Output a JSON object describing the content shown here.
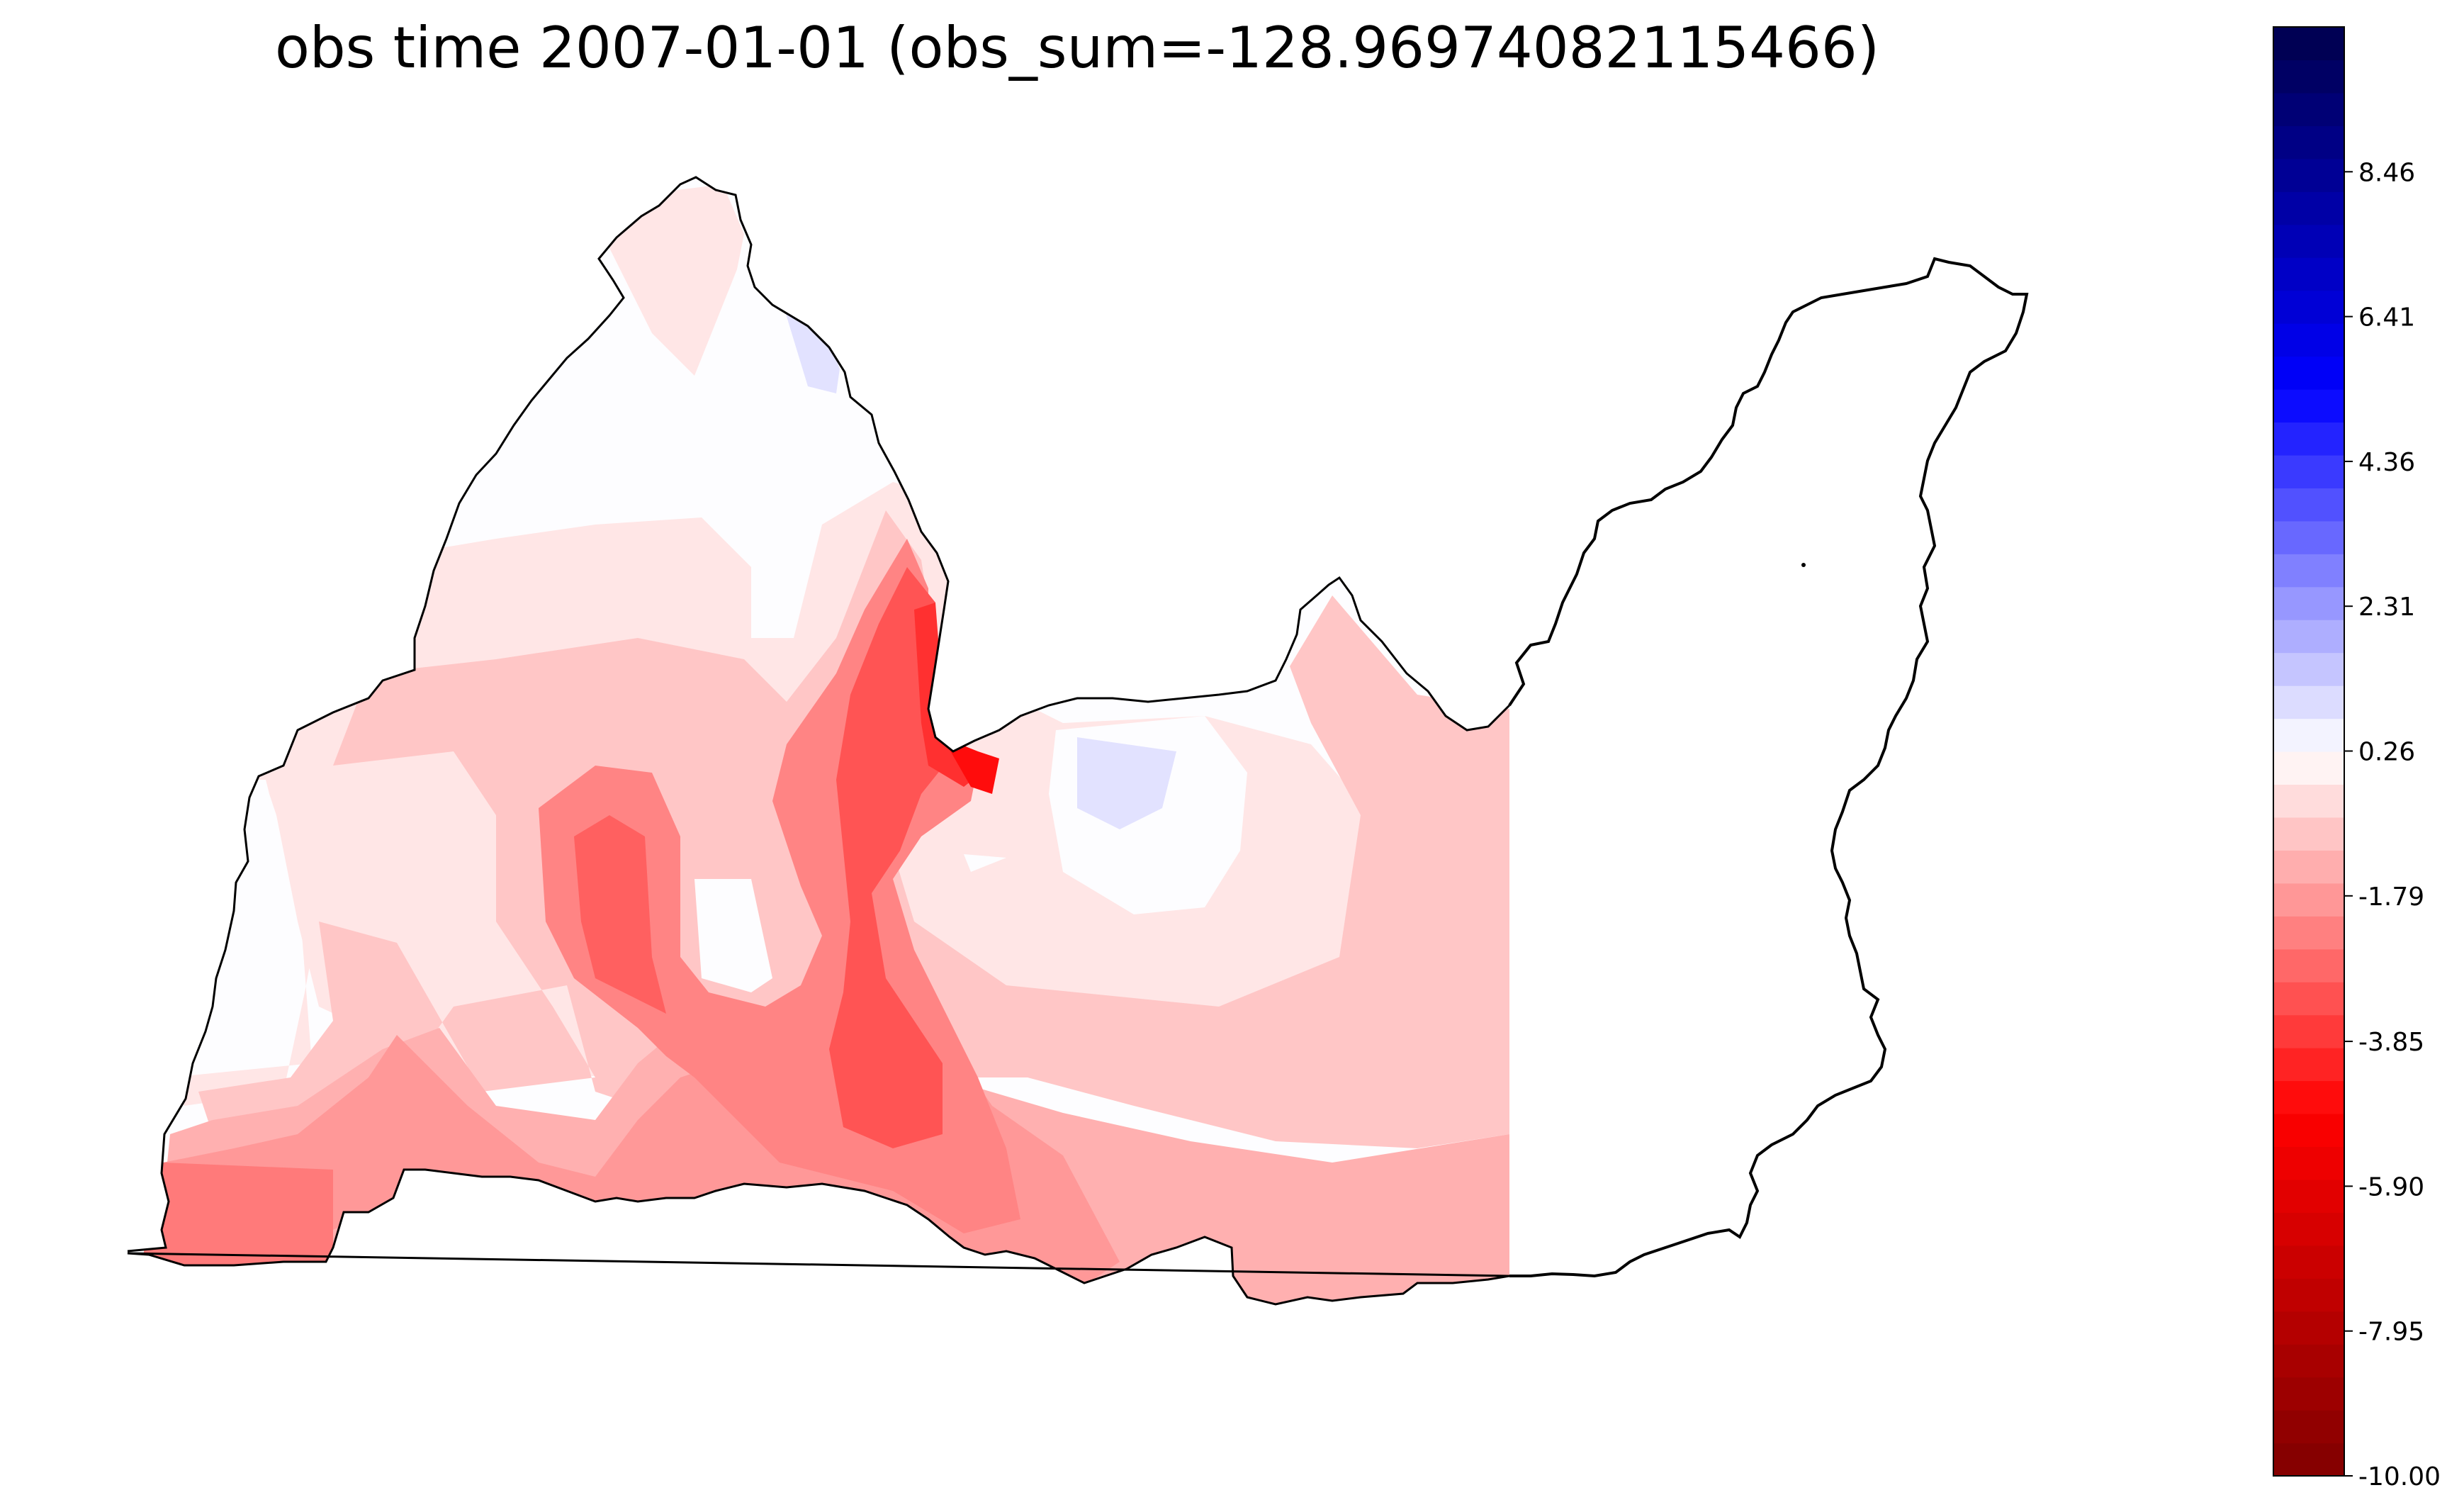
{
  "chart_data": {
    "type": "heatmap",
    "title": "obs time 2007-01-01 (obs_sum=-128.96974082115466)",
    "colormap": "seismic_r",
    "colors": {
      "min": "#800000",
      "mid": "#ffffff",
      "max": "#00004c"
    },
    "colorbar": {
      "vmin": -10.0,
      "vmax": 10.51,
      "levels": 44,
      "placement": "right",
      "ticks": [
        -10.0,
        -7.95,
        -5.9,
        -3.85,
        -1.79,
        0.26,
        2.31,
        4.36,
        6.41,
        8.46
      ],
      "tick_labels": [
        "-10.00",
        "-7.95",
        "-5.90",
        "-3.85",
        "-1.79",
        "0.26",
        "2.31",
        "4.36",
        "6.41",
        "8.46"
      ]
    },
    "grid": false,
    "axes_visible": false
  }
}
